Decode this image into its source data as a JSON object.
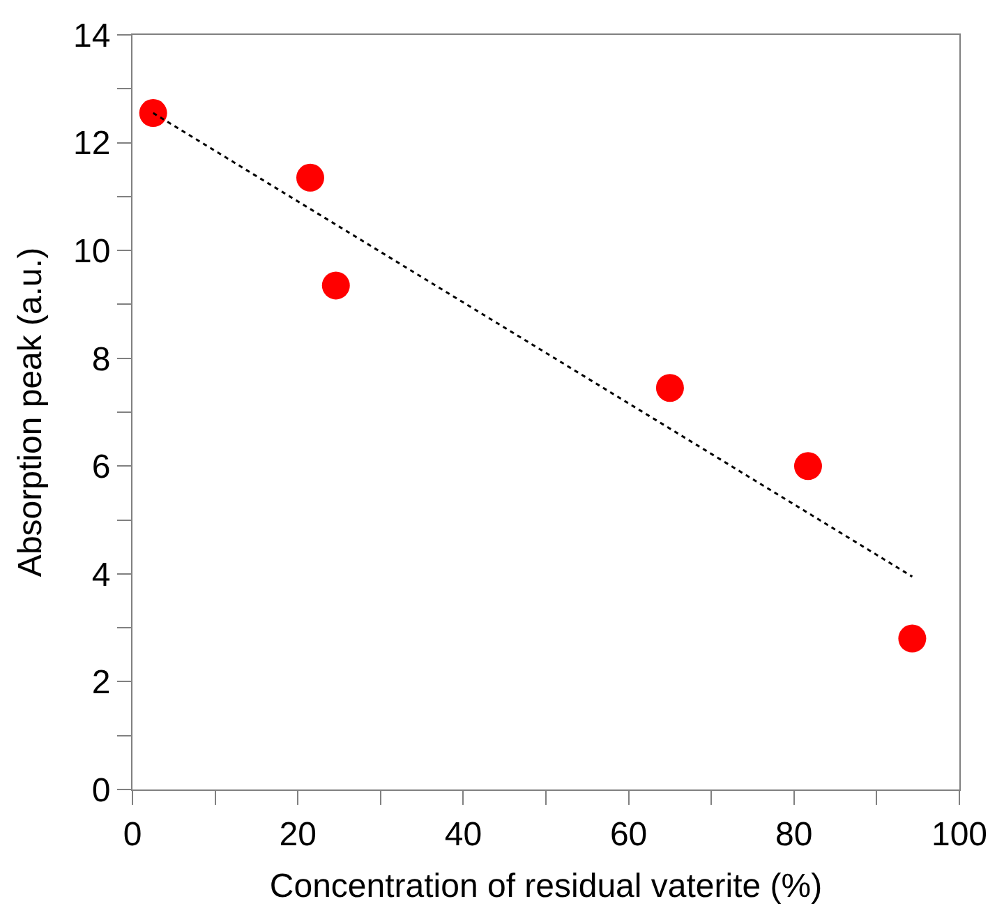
{
  "chart_data": {
    "type": "scatter",
    "xlabel": "Concentration of residual vaterite (%)",
    "ylabel": "Absorption peak (a.u.)",
    "xlim": [
      0,
      100
    ],
    "ylim": [
      0,
      14
    ],
    "xticks": [
      0,
      {
        "value": 10,
        "label": null
      },
      20,
      {
        "value": 30,
        "label": null
      },
      40,
      {
        "value": 50,
        "label": null
      },
      60,
      {
        "value": 70,
        "label": null
      },
      80,
      {
        "value": 90,
        "label": null
      },
      100
    ],
    "yticks": [
      0,
      {
        "value": 1,
        "label": null
      },
      2,
      {
        "value": 3,
        "label": null
      },
      4,
      {
        "value": 5,
        "label": null
      },
      6,
      {
        "value": 7,
        "label": null
      },
      8,
      {
        "value": 9,
        "label": null
      },
      10,
      {
        "value": 11,
        "label": null
      },
      12,
      {
        "value": 13,
        "label": null
      },
      14
    ],
    "marker": "circle",
    "series": [
      {
        "color": "#ff0000",
        "x": [
          2.5,
          21.5,
          24.6,
          65,
          81.7,
          94.3
        ],
        "values": [
          12.55,
          11.35,
          9.35,
          7.45,
          6.0,
          2.8
        ]
      },
      {
        "type": "line",
        "color": "#000000",
        "line_style": "dotted",
        "marker": "none",
        "x": [
          2.5,
          94.3
        ],
        "values": [
          12.55,
          3.95
        ]
      }
    ]
  }
}
